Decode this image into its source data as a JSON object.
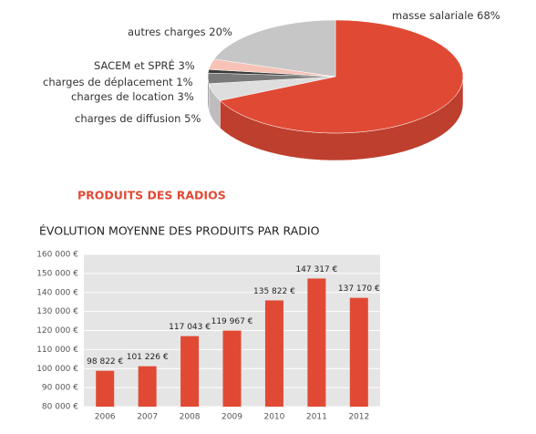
{
  "heading": "PRODUITS DES RADIOS",
  "chart_data": [
    {
      "type": "pie",
      "categories": [
        "masse salariale",
        "charges de diffusion",
        "charges de location",
        "charges de déplacement",
        "SACEM et SPRÉ",
        "autres charges"
      ],
      "values": [
        68,
        5,
        3,
        1,
        3,
        20
      ],
      "value_labels": [
        "68%",
        "5%",
        "3%",
        "1%",
        "3%",
        "20%"
      ],
      "colors": [
        "#e04a35",
        "#dedede",
        "#7a7a7a",
        "#3a3a3a",
        "#f7c3b7",
        "#c6c6c6"
      ]
    },
    {
      "type": "bar",
      "title": "ÉVOLUTION MOYENNE DES PRODUITS PAR RADIO",
      "categories": [
        "2006",
        "2007",
        "2008",
        "2009",
        "2010",
        "2011",
        "2012"
      ],
      "values": [
        98822,
        101226,
        117043,
        119967,
        135822,
        147317,
        137170
      ],
      "value_labels": [
        "98 822 €",
        "101 226 €",
        "117 043 €",
        "119 967 €",
        "135 822 €",
        "147 317 €",
        "137 170 €"
      ],
      "color": "#e04a35",
      "ylim": [
        80000,
        160000
      ],
      "yticks": [
        {
          "value": 80000,
          "label": "80 000 €"
        },
        {
          "value": 90000,
          "label": "90 000 €"
        },
        {
          "value": 100000,
          "label": "100 000 €"
        },
        {
          "value": 110000,
          "label": "110 000 €"
        },
        {
          "value": 120000,
          "label": "120 000 €"
        },
        {
          "value": 130000,
          "label": "130 000 €"
        },
        {
          "value": 140000,
          "label": "140 000 €"
        },
        {
          "value": 150000,
          "label": "150 000 €"
        },
        {
          "value": 160000,
          "label": "160 000 €"
        }
      ],
      "grid": true
    }
  ]
}
